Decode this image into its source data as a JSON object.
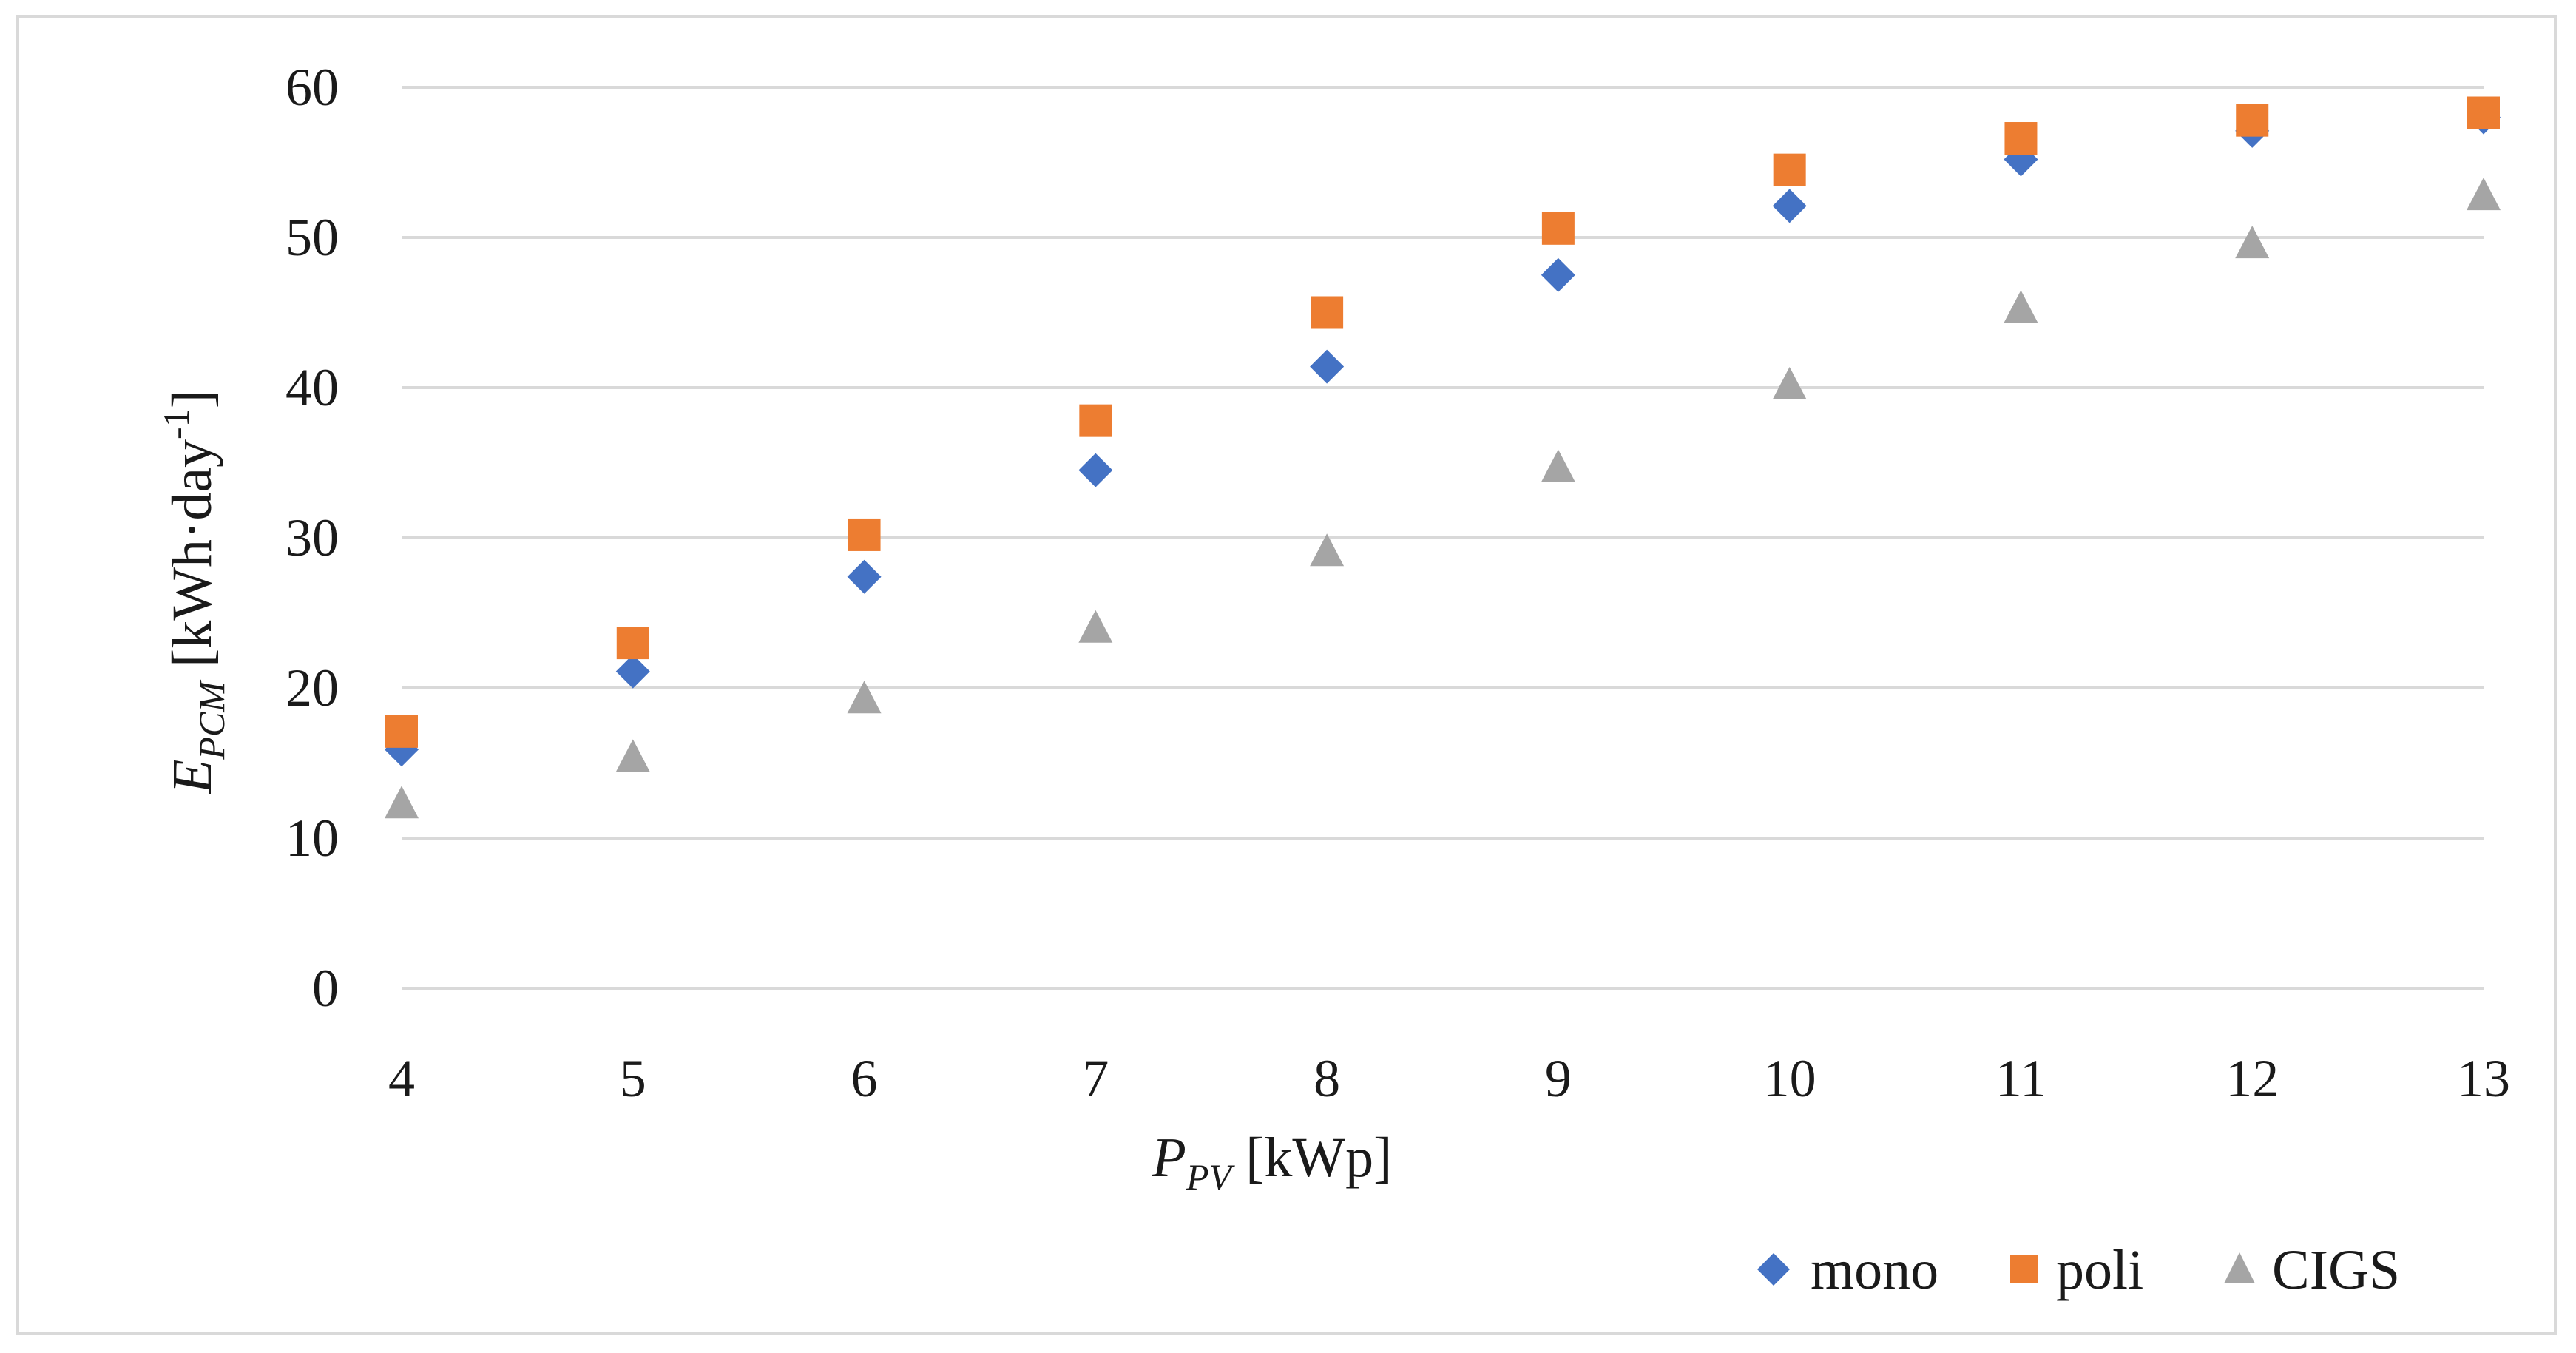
{
  "chart_data": {
    "type": "scatter",
    "title": "",
    "x": [
      4,
      5,
      6,
      7,
      8,
      9,
      10,
      11,
      12,
      13
    ],
    "xlim": [
      4,
      13
    ],
    "ylim": [
      0,
      60
    ],
    "xticks": [
      "4",
      "5",
      "6",
      "7",
      "8",
      "9",
      "10",
      "11",
      "12",
      "13"
    ],
    "yticks": [
      "0",
      "10",
      "20",
      "30",
      "40",
      "50",
      "60"
    ],
    "xlabel": {
      "main": "P",
      "sub": "PV",
      "unit": " [kWp]"
    },
    "ylabel": {
      "main": "E",
      "sub": "PCM",
      "unit": " [kWh·day",
      "sup": "-1",
      "close": "]"
    },
    "grid": true,
    "legend_position": "bottom-right",
    "series": [
      {
        "name": "mono",
        "marker": "diamond",
        "color": "#4472C4",
        "values": [
          15.9,
          21.1,
          27.4,
          34.5,
          41.4,
          47.5,
          52.1,
          55.2,
          57.1,
          58.0
        ]
      },
      {
        "name": "poli",
        "marker": "square",
        "color": "#ED7D31",
        "values": [
          17.1,
          23.0,
          30.2,
          37.8,
          45.0,
          50.6,
          54.5,
          56.6,
          57.8,
          58.3
        ]
      },
      {
        "name": "CIGS",
        "marker": "triangle",
        "color": "#A5A5A5",
        "values": [
          12.3,
          15.4,
          19.3,
          24.0,
          29.1,
          34.7,
          40.2,
          45.3,
          49.6,
          52.8
        ]
      }
    ]
  }
}
